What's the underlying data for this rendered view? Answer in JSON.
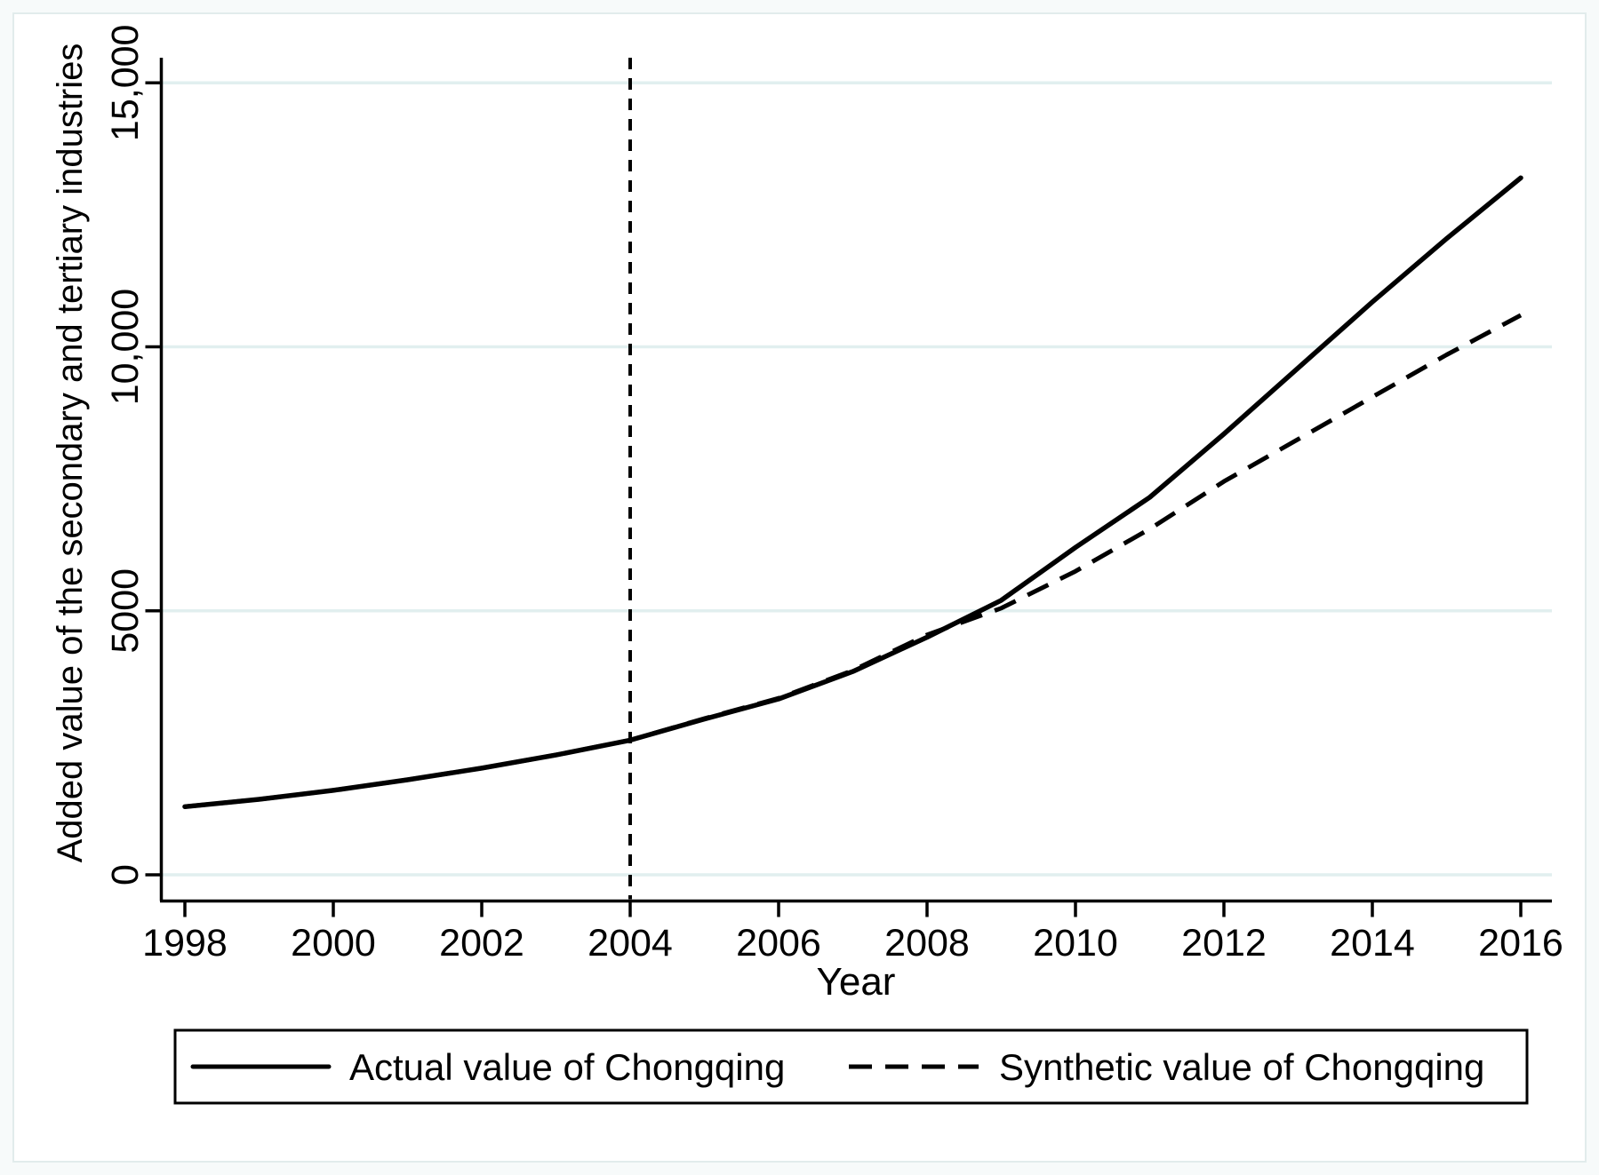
{
  "chart_data": {
    "type": "line",
    "x": [
      1998,
      1999,
      2000,
      2001,
      2002,
      2003,
      2004,
      2005,
      2006,
      2007,
      2008,
      2009,
      2010,
      2011,
      2012,
      2013,
      2014,
      2015,
      2016
    ],
    "series": [
      {
        "name": "Actual value of Chongqing",
        "style": "solid",
        "values": [
          1290,
          1430,
          1600,
          1800,
          2020,
          2270,
          2550,
          2950,
          3330,
          3850,
          4500,
          5200,
          6200,
          7150,
          8350,
          9600,
          10850,
          12050,
          13200
        ]
      },
      {
        "name": "Synthetic value of Chongqing",
        "style": "dashed",
        "values": [
          1290,
          1430,
          1600,
          1800,
          2020,
          2270,
          2550,
          2960,
          3345,
          3870,
          4545,
          5050,
          5750,
          6550,
          7450,
          8250,
          9050,
          9850,
          10600
        ]
      }
    ],
    "xlabel": "Year",
    "ylabel": "Added value of the secondary and tertiary industries",
    "xticks": [
      1998,
      2000,
      2002,
      2004,
      2006,
      2008,
      2010,
      2012,
      2014,
      2016
    ],
    "yticks": [
      0,
      5000,
      10000,
      15000
    ],
    "ytick_labels": [
      "0",
      "5000",
      "10,000",
      "15,000"
    ],
    "xlim": [
      1998,
      2016.4
    ],
    "ylim": [
      0,
      15480
    ],
    "grid": "horizontal",
    "legend_position": "bottom",
    "annotations": {
      "vline_x": 2004,
      "vline_style": "dashed"
    }
  },
  "axes": {
    "x": {
      "title": "Year"
    },
    "y": {
      "title": "Added value of the secondary and tertiary industries"
    }
  },
  "legend": {
    "items": [
      {
        "label": "Actual value of Chongqing",
        "swatch": "solid-line"
      },
      {
        "label": "Synthetic value of Chongqing",
        "swatch": "dashed-line"
      }
    ]
  },
  "colors": {
    "line": "#000000",
    "gridline": "#e1efef",
    "plot_background": "#ffffff",
    "frame_border": "#e2ecec"
  }
}
